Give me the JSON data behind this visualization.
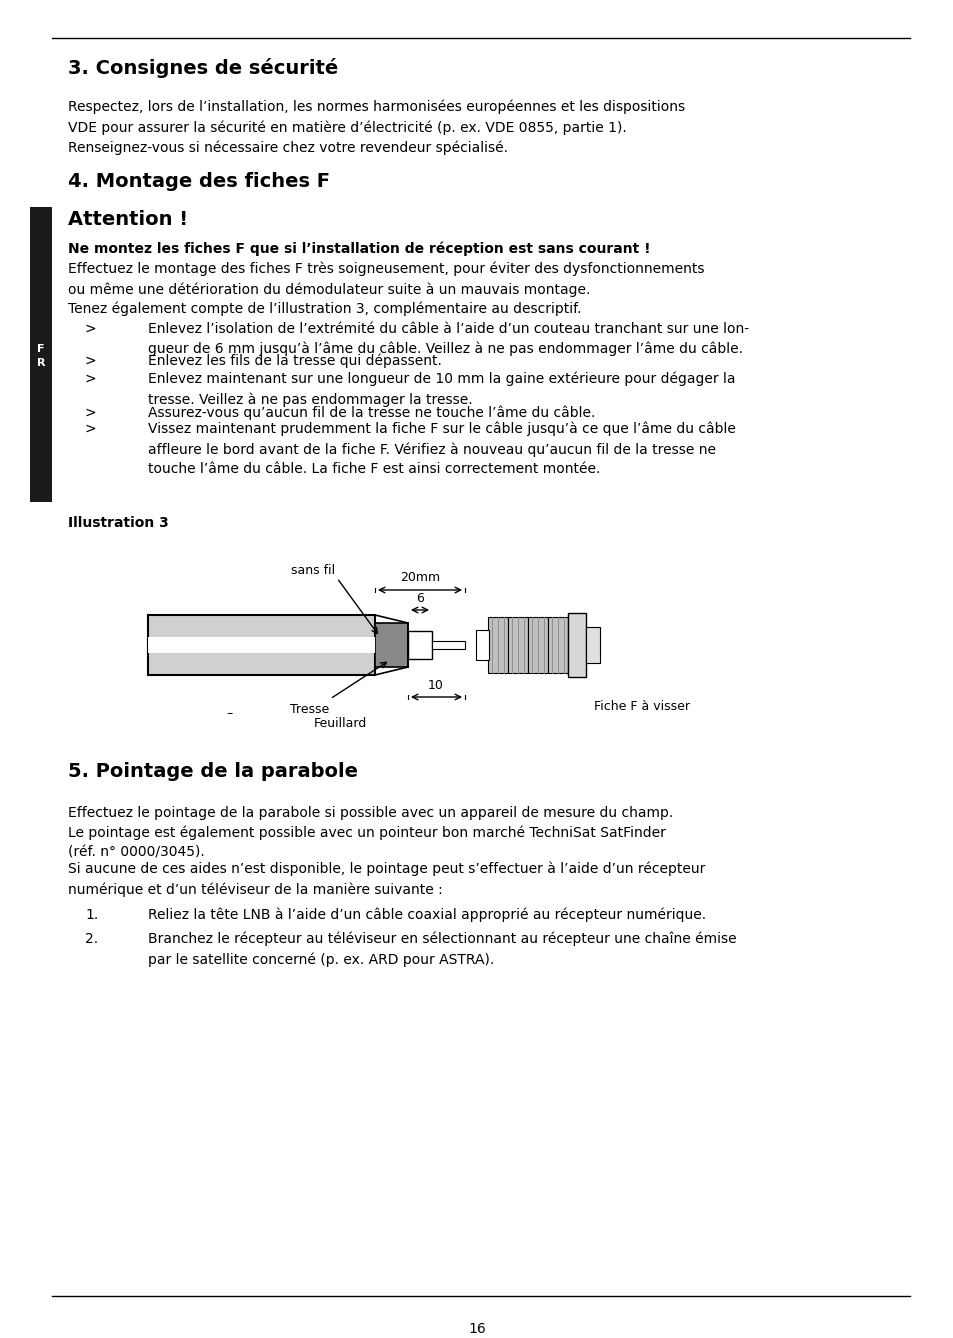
{
  "bg_color": "#ffffff",
  "page_number": "16",
  "fr_bar_color": "#1a1a1a",
  "section3_title": "3. Consignes de sécurité",
  "section3_body": "Respectez, lors de l’installation, les normes harmonisées européennes et les dispositions\nVDE pour assurer la sécurité en matière d’électricité (p. ex. VDE 0855, partie 1).\nRenseignez-vous si nécessaire chez votre revendeur spécialisé.",
  "section4_title": "4. Montage des fiches F",
  "attention_title": "Attention !",
  "attention_warning": "Ne montez les fiches F que si l’installation de réception est sans courant !",
  "attention_body1": "Effectuez le montage des fiches F très soigneusement, pour éviter des dysfonctionnements\nou même une détérioration du démodulateur suite à un mauvais montage.",
  "attention_body2": "Tenez également compte de l’illustration 3, complémentaire au descriptif.",
  "bullet_items": [
    "Enlevez l’isolation de l’extrémité du câble à l’aide d’un couteau tranchant sur une lon-\ngueur de 6 mm jusqu’à l’âme du câble. Veillez à ne pas endommager l’âme du câble.",
    "Enlevez les fils de la tresse qui dépassent.",
    "Enlevez maintenant sur une longueur de 10 mm la gaine extérieure pour dégager la\ntresse. Veillez à ne pas endommager la tresse.",
    "Assurez-vous qu’aucun fil de la tresse ne touche l’âme du câble.",
    "Vissez maintenant prudemment la fiche F sur le câble jusqu’à ce que l’âme du câble\naffleure le bord avant de la fiche F. Vérifiez à nouveau qu’aucun fil de la tresse ne\ntouche l’âme du câble. La fiche F est ainsi correctement montée."
  ],
  "illustration_label": "Illustration 3",
  "section5_title": "5. Pointage de la parabole",
  "section5_body1": "Effectuez le pointage de la parabole si possible avec un appareil de mesure du champ.\nLe pointage est également possible avec un pointeur bon marché TechniSat SatFinder\n(réf. n° 0000/3045).",
  "section5_body2": "Si aucune de ces aides n’est disponible, le pointage peut s’effectuer à l’aide d’un récepteur\nnumérique et d’un téléviseur de la manière suivante :",
  "numbered_items": [
    "Reliez la tête LNB à l’aide d’un câble coaxial approprié au récepteur numérique.",
    "Branchez le récepteur au téléviseur en sélectionnant au récepteur une chaîne émise\npar le satellite concerné (p. ex. ARD pour ASTRA)."
  ]
}
